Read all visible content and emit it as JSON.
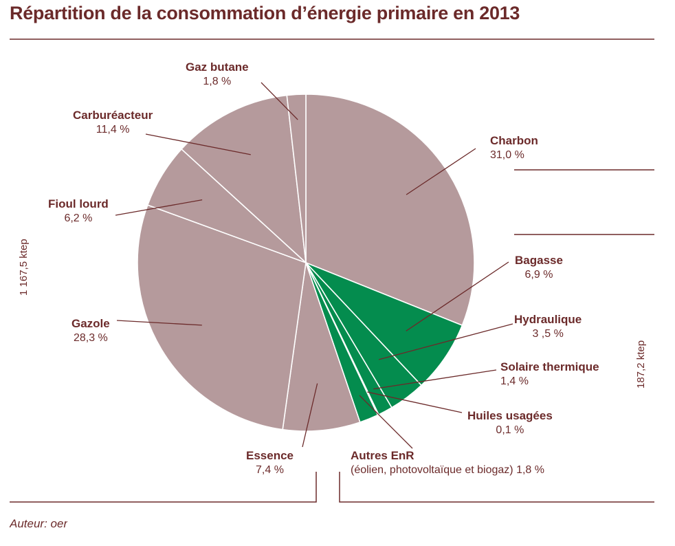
{
  "title": "Répartition de la consommation d’énergie primaire en 2013",
  "author": "Auteur: oer",
  "colors": {
    "non_renewable": "#b59a9c",
    "renewable": "#048c4e",
    "text": "#6b2a2a"
  },
  "group_labels": {
    "non_renewable_total": "1 167,5 ktep",
    "renewable_total": "187,2 ktep"
  },
  "chart_data": {
    "type": "pie",
    "title": "Répartition de la consommation d’énergie primaire en 2013",
    "unit": "%",
    "start": "12 o'clock, clockwise",
    "slices": [
      {
        "name": "Charbon",
        "value": 31.0,
        "value_label": "31,0 %",
        "group": "non_renewable"
      },
      {
        "name": "Bagasse",
        "value": 6.9,
        "value_label": "6,9 %",
        "group": "renewable"
      },
      {
        "name": "Hydraulique",
        "value": 3.5,
        "value_label": "3 ,5 %",
        "group": "renewable"
      },
      {
        "name": "Solaire thermique",
        "value": 1.4,
        "value_label": "1,4 %",
        "group": "renewable"
      },
      {
        "name": "Huiles usagées",
        "value": 0.1,
        "value_label": "0,1 %",
        "group": "renewable"
      },
      {
        "name": "Autres EnR",
        "sub_label": "(éolien, photovoltaïque et biogaz)",
        "value": 1.8,
        "value_label": "1,8 %",
        "group": "renewable"
      },
      {
        "name": "Essence",
        "value": 7.4,
        "value_label": "7,4 %",
        "group": "non_renewable"
      },
      {
        "name": "Gazole",
        "value": 28.3,
        "value_label": "28,3 %",
        "group": "non_renewable"
      },
      {
        "name": "Fioul lourd",
        "value": 6.2,
        "value_label": "6,2 %",
        "group": "non_renewable"
      },
      {
        "name": "Carburéacteur",
        "value": 11.4,
        "value_label": "11,4 %",
        "group": "non_renewable"
      },
      {
        "name": "Gaz butane",
        "value": 1.8,
        "value_label": "1,8 %",
        "group": "non_renewable"
      }
    ]
  }
}
